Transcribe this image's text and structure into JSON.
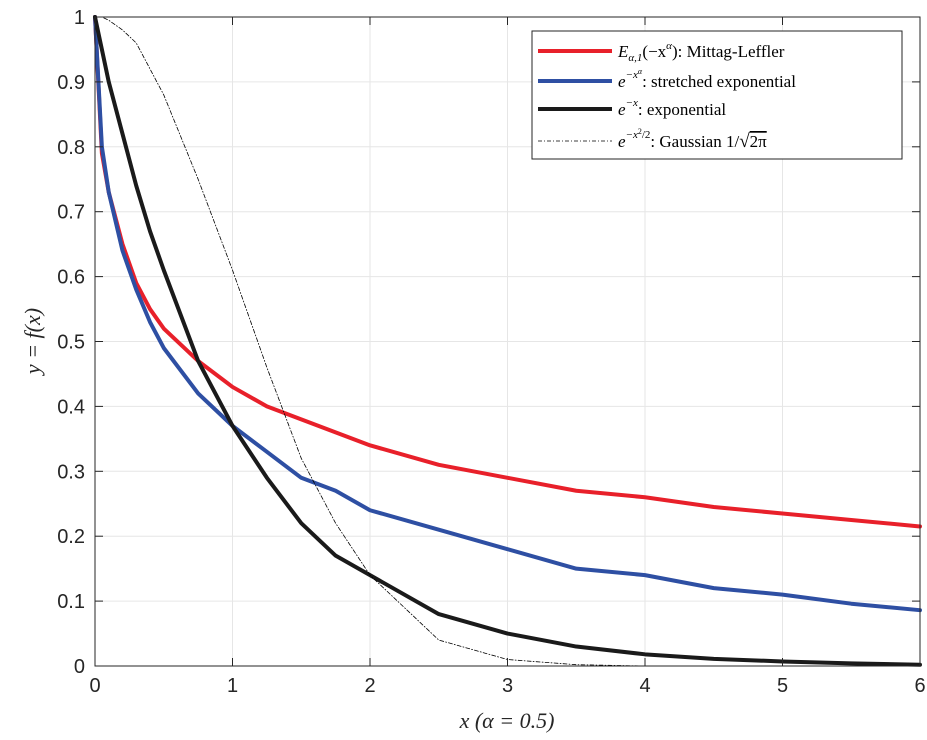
{
  "chart_data": {
    "type": "line",
    "xlabel": "x    (α = 0.5)",
    "ylabel": "y = f(x)",
    "xlim": [
      0,
      6
    ],
    "ylim": [
      0,
      1
    ],
    "xticks": [
      "0",
      "1",
      "2",
      "3",
      "4",
      "5",
      "6"
    ],
    "yticks": [
      "0",
      "0.1",
      "0.2",
      "0.3",
      "0.4",
      "0.5",
      "0.6",
      "0.7",
      "0.8",
      "0.9",
      "1"
    ],
    "grid": true,
    "legend_position": "top-right",
    "alpha": 0.5,
    "series": [
      {
        "name": "E_{α,1}(−x^α): Mittag-Leffler",
        "color": "#e8202a",
        "style": "solid-thick",
        "x": [
          0,
          0.05,
          0.1,
          0.2,
          0.3,
          0.4,
          0.5,
          0.75,
          1,
          1.25,
          1.5,
          1.75,
          2,
          2.5,
          3,
          3.5,
          4,
          4.5,
          5,
          5.5,
          6
        ],
        "y": [
          1,
          0.79,
          0.73,
          0.65,
          0.59,
          0.55,
          0.52,
          0.47,
          0.43,
          0.4,
          0.38,
          0.36,
          0.34,
          0.31,
          0.29,
          0.27,
          0.26,
          0.245,
          0.235,
          0.225,
          0.215
        ]
      },
      {
        "name": "e^{−x^α}: stretched exponential",
        "color": "#2e4fa3",
        "style": "solid-thick",
        "x": [
          0,
          0.05,
          0.1,
          0.2,
          0.3,
          0.4,
          0.5,
          0.75,
          1,
          1.25,
          1.5,
          1.75,
          2,
          2.5,
          3,
          3.5,
          4,
          4.5,
          5,
          5.5,
          6
        ],
        "y": [
          1,
          0.8,
          0.73,
          0.64,
          0.58,
          0.53,
          0.49,
          0.42,
          0.37,
          0.33,
          0.29,
          0.27,
          0.24,
          0.21,
          0.18,
          0.15,
          0.14,
          0.12,
          0.11,
          0.096,
          0.086
        ]
      },
      {
        "name": "e^{−x}: exponential",
        "color": "#1a1a1a",
        "style": "solid-thick",
        "x": [
          0,
          0.05,
          0.1,
          0.2,
          0.3,
          0.4,
          0.5,
          0.75,
          1,
          1.25,
          1.5,
          1.75,
          2,
          2.5,
          3,
          3.5,
          4,
          4.5,
          5,
          5.5,
          6
        ],
        "y": [
          1,
          0.95,
          0.9,
          0.82,
          0.74,
          0.67,
          0.61,
          0.47,
          0.37,
          0.29,
          0.22,
          0.17,
          0.14,
          0.08,
          0.05,
          0.03,
          0.018,
          0.011,
          0.007,
          0.004,
          0.002
        ]
      },
      {
        "name": "e^{−x²/2}: Gaussian 1/√(2π)",
        "color": "#000000",
        "style": "dashdot-thin",
        "x": [
          0,
          0.05,
          0.1,
          0.2,
          0.3,
          0.4,
          0.5,
          0.75,
          1,
          1.25,
          1.5,
          1.75,
          2,
          2.5,
          3,
          3.5,
          4,
          4.5,
          5,
          5.5,
          6
        ],
        "y": [
          1,
          1.0,
          0.995,
          0.98,
          0.96,
          0.92,
          0.88,
          0.75,
          0.61,
          0.46,
          0.32,
          0.22,
          0.14,
          0.04,
          0.01,
          0.002,
          0,
          0,
          0,
          0,
          0
        ]
      }
    ]
  },
  "legend": {
    "ml_func": "E",
    "ml_sub": "α,1",
    "ml_arg_open": "(−x",
    "ml_arg_exp": "α",
    "ml_arg_close": ")",
    "ml_desc": ": Mittag-Leffler",
    "se_base": "e",
    "se_exp": "−x",
    "se_exp_exp": "α",
    "se_desc": ": stretched exponential",
    "ex_base": "e",
    "ex_exp": "−x",
    "ex_desc": ": exponential",
    "ga_base": "e",
    "ga_exp": "−x",
    "ga_exp_sq": "2",
    "ga_exp_tail": "/2",
    "ga_desc": ": Gaussian 1/",
    "ga_sqrt_arg": "2π"
  }
}
